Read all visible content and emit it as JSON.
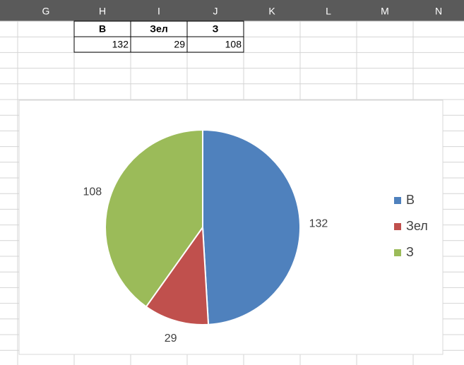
{
  "columns": [
    "G",
    "H",
    "I",
    "J",
    "K",
    "L",
    "M",
    "N"
  ],
  "table": {
    "header": [
      "В",
      "Зел",
      "З"
    ],
    "rows": [
      [
        132,
        29,
        108
      ]
    ]
  },
  "chart_data": {
    "type": "pie",
    "categories": [
      "В",
      "Зел",
      "З"
    ],
    "values": [
      132,
      29,
      108
    ],
    "colors": [
      "#4f81bd",
      "#c0504d",
      "#9bbb59"
    ],
    "legend": "right"
  }
}
